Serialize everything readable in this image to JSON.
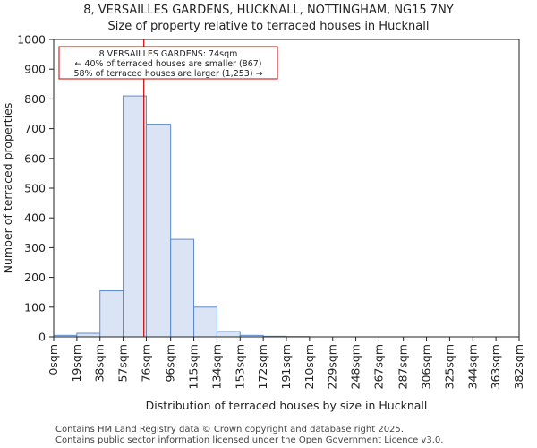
{
  "chart_data": {
    "type": "bar",
    "title_lines": [
      "8, VERSAILLES GARDENS, HUCKNALL, NOTTINGHAM, NG15 7NY",
      "Size of property relative to terraced houses in Hucknall"
    ],
    "xlabel": "Distribution of terraced houses by size in Hucknall",
    "ylabel": "Number of terraced properties",
    "bin_edges": [
      0,
      19,
      38,
      57,
      76,
      96,
      115,
      134,
      153,
      172,
      191,
      210,
      229,
      248,
      267,
      287,
      306,
      325,
      344,
      363,
      382
    ],
    "x_tick_labels": [
      "0sqm",
      "19sqm",
      "38sqm",
      "57sqm",
      "76sqm",
      "96sqm",
      "115sqm",
      "134sqm",
      "153sqm",
      "172sqm",
      "191sqm",
      "210sqm",
      "229sqm",
      "248sqm",
      "267sqm",
      "287sqm",
      "306sqm",
      "325sqm",
      "344sqm",
      "363sqm",
      "382sqm"
    ],
    "values": [
      5,
      12,
      155,
      810,
      715,
      328,
      100,
      18,
      5,
      2,
      1,
      0,
      0,
      0,
      0,
      0,
      0,
      0,
      0,
      0
    ],
    "ylim": [
      0,
      1000
    ],
    "y_ticks": [
      0,
      100,
      200,
      300,
      400,
      500,
      600,
      700,
      800,
      900,
      1000
    ],
    "bar_fill": "#dbe4f5",
    "bar_stroke": "#5b8acb",
    "marker": {
      "value": 74,
      "color": "#c00000"
    },
    "annotation": {
      "lines": [
        "8 VERSAILLES GARDENS: 74sqm",
        "← 40% of terraced houses are smaller (867)",
        "58% of terraced houses are larger (1,253) →"
      ],
      "border_color": "#c00000"
    },
    "grid": false
  },
  "footer": {
    "line1": "Contains HM Land Registry data © Crown copyright and database right 2025.",
    "line2": "Contains public sector information licensed under the Open Government Licence v3.0."
  }
}
